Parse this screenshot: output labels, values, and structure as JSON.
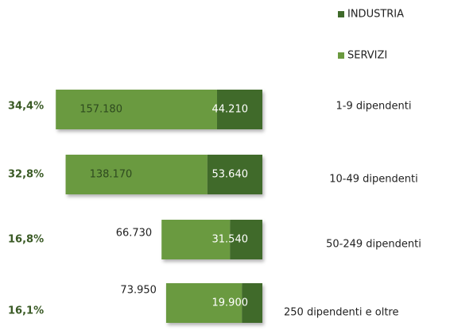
{
  "chart_data": {
    "type": "bar",
    "orientation": "horizontal",
    "stacked": true,
    "categories": [
      "1-9 dipendenti",
      "10-49 dipendenti",
      "50-249 dipendenti",
      "250 dipendenti e oltre"
    ],
    "row_labels": [
      "34,4%",
      "32,8%",
      "16,8%",
      "16,1%"
    ],
    "series": [
      {
        "name": "SERVIZI",
        "color": "#6b9a3f",
        "values": [
          157180,
          138170,
          66730,
          73950
        ],
        "value_labels": [
          "157.180",
          "138.170",
          "66.730",
          "73.950"
        ]
      },
      {
        "name": "INDUSTRIA",
        "color": "#3f6a2a",
        "values": [
          44210,
          53640,
          31540,
          19900
        ],
        "value_labels": [
          "44.210",
          "53.640",
          "31.540",
          "19.900"
        ]
      }
    ],
    "xlim": [
      0,
      200000
    ],
    "legend": "top-right"
  }
}
